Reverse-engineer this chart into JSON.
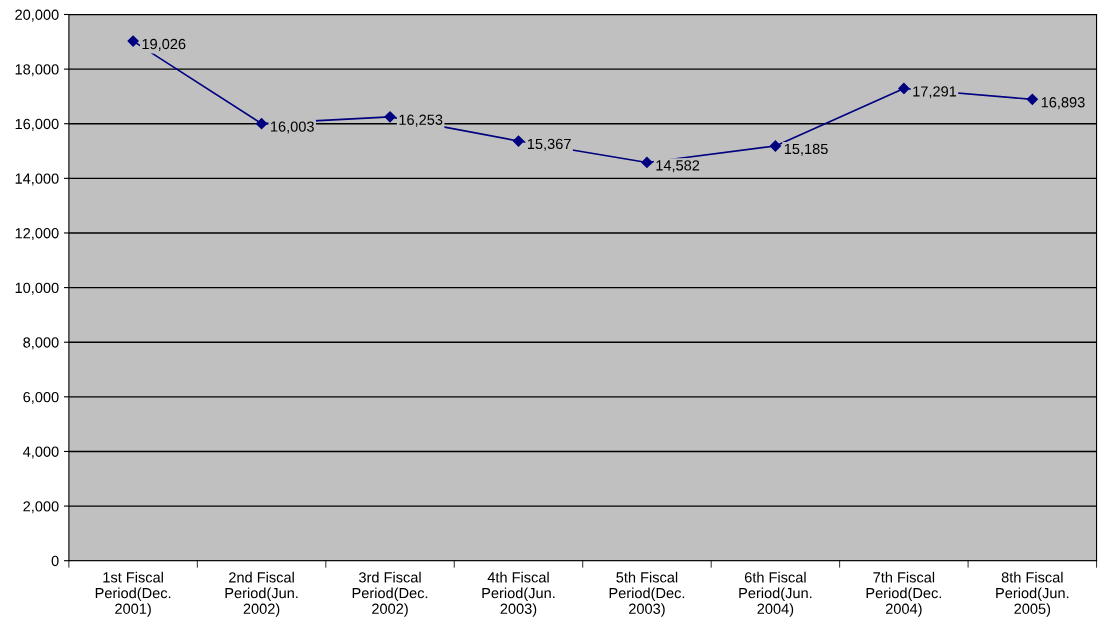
{
  "chart_data": {
    "type": "line",
    "categories": [
      "1st Fiscal\nPeriod(Dec.\n2001)",
      "2nd Fiscal\nPeriod(Jun.\n2002)",
      "3rd Fiscal\nPeriod(Dec.\n2002)",
      "4th Fiscal\nPeriod(Jun.\n2003)",
      "5th Fiscal\nPeriod(Dec.\n2003)",
      "6th Fiscal\nPeriod(Jun.\n2004)",
      "7th Fiscal\nPeriod(Dec.\n2004)",
      "8th Fiscal\nPeriod(Jun.\n2005)"
    ],
    "series": [
      {
        "color": "#000080",
        "values": [
          19026,
          16003,
          16253,
          15367,
          14582,
          15185,
          17291,
          16893
        ],
        "value_labels": [
          "19,026",
          "16,003",
          "16,253",
          "15,367",
          "14,582",
          "15,185",
          "17,291",
          "16,893"
        ]
      }
    ],
    "ylim": [
      0,
      20000
    ],
    "yticks": [
      {
        "value": 0,
        "label": "0"
      },
      {
        "value": 2000,
        "label": "2,000"
      },
      {
        "value": 4000,
        "label": "4,000"
      },
      {
        "value": 6000,
        "label": "6,000"
      },
      {
        "value": 8000,
        "label": "8,000"
      },
      {
        "value": 10000,
        "label": "10,000"
      },
      {
        "value": 12000,
        "label": "12,000"
      },
      {
        "value": 14000,
        "label": "14,000"
      },
      {
        "value": 16000,
        "label": "16,000"
      },
      {
        "value": 18000,
        "label": "18,000"
      },
      {
        "value": 20000,
        "label": "20,000"
      }
    ],
    "grid": "y",
    "marker": "diamond",
    "line_style": "solid",
    "legend": false
  }
}
